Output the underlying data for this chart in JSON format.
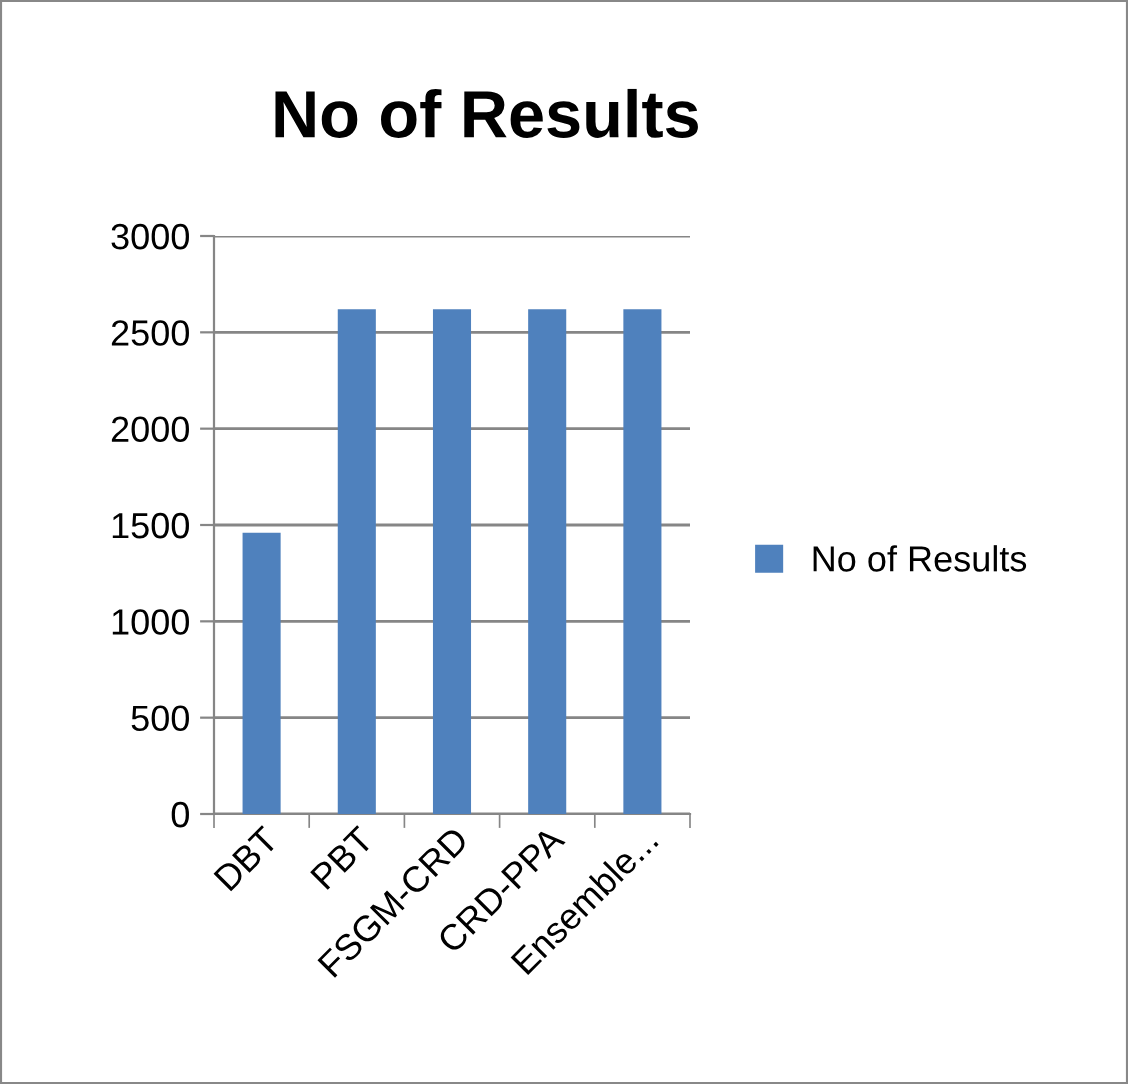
{
  "chart_data": {
    "type": "bar",
    "title": "No of Results",
    "categories": [
      "DBT",
      "PBT",
      "FSGM-CRD",
      "CRD-PPA",
      "Ensemble..."
    ],
    "series": [
      {
        "name": "No of Results",
        "color": "#4f81bd",
        "values": [
          1460,
          2620,
          2620,
          2620,
          2620
        ]
      }
    ],
    "ylim": [
      0,
      3000
    ],
    "yticks": [
      0,
      500,
      1000,
      1500,
      2000,
      2500,
      3000
    ],
    "grid": "y",
    "legend": "right"
  }
}
